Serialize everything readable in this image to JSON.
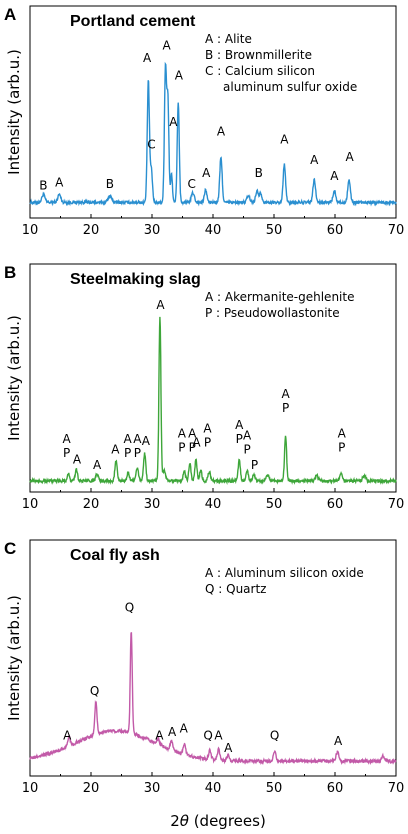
{
  "xlabel_prefix": "2",
  "xlabel_theta": "θ",
  "xlabel_suffix": " (degrees)",
  "chart_data": [
    {
      "type": "line",
      "letter": "A",
      "title": "Portland cement",
      "ylabel": "Intensity (arb.u.)",
      "color": "#2a8fd0",
      "xlim": [
        10,
        70
      ],
      "xticks": [
        10,
        20,
        30,
        40,
        50,
        60,
        70
      ],
      "legend": [
        "A : Alite",
        "B : Brownmillerite",
        "C : Calcium silicon",
        "aluminum sulfur oxide"
      ],
      "baseline": 0.06,
      "peaks": [
        {
          "x": 12.2,
          "h": 0.05,
          "w": 0.25
        },
        {
          "x": 14.8,
          "h": 0.05,
          "w": 0.25
        },
        {
          "x": 23.1,
          "h": 0.04,
          "w": 0.3
        },
        {
          "x": 29.4,
          "h": 0.76,
          "w": 0.18
        },
        {
          "x": 29.9,
          "h": 0.2,
          "w": 0.18
        },
        {
          "x": 32.2,
          "h": 0.83,
          "w": 0.17
        },
        {
          "x": 32.6,
          "h": 0.64,
          "w": 0.17
        },
        {
          "x": 33.2,
          "h": 0.18,
          "w": 0.15
        },
        {
          "x": 34.3,
          "h": 0.62,
          "w": 0.17
        },
        {
          "x": 36.7,
          "h": 0.06,
          "w": 0.25
        },
        {
          "x": 38.8,
          "h": 0.08,
          "w": 0.2
        },
        {
          "x": 41.3,
          "h": 0.28,
          "w": 0.2
        },
        {
          "x": 45.8,
          "h": 0.04,
          "w": 0.25
        },
        {
          "x": 47.2,
          "h": 0.07,
          "w": 0.22
        },
        {
          "x": 47.8,
          "h": 0.06,
          "w": 0.22
        },
        {
          "x": 51.7,
          "h": 0.24,
          "w": 0.2
        },
        {
          "x": 56.6,
          "h": 0.14,
          "w": 0.22
        },
        {
          "x": 59.9,
          "h": 0.07,
          "w": 0.22
        },
        {
          "x": 62.3,
          "h": 0.14,
          "w": 0.22
        }
      ],
      "labels": [
        {
          "x": 12.2,
          "y": 0.14,
          "text": [
            "B"
          ]
        },
        {
          "x": 14.8,
          "y": 0.16,
          "text": [
            "A"
          ]
        },
        {
          "x": 23.1,
          "y": 0.15,
          "text": [
            "B"
          ]
        },
        {
          "x": 29.2,
          "y": 0.94,
          "text": [
            "A"
          ]
        },
        {
          "x": 29.9,
          "y": 0.4,
          "text": [
            "C"
          ]
        },
        {
          "x": 32.4,
          "y": 1.02,
          "text": [
            "A"
          ]
        },
        {
          "x": 33.5,
          "y": 0.54,
          "text": [
            "A"
          ]
        },
        {
          "x": 34.4,
          "y": 0.83,
          "text": [
            "A"
          ]
        },
        {
          "x": 36.5,
          "y": 0.15,
          "text": [
            "C"
          ]
        },
        {
          "x": 38.9,
          "y": 0.22,
          "text": [
            "A"
          ]
        },
        {
          "x": 41.3,
          "y": 0.48,
          "text": [
            "A"
          ]
        },
        {
          "x": 47.5,
          "y": 0.22,
          "text": [
            "B"
          ]
        },
        {
          "x": 51.7,
          "y": 0.43,
          "text": [
            "A"
          ]
        },
        {
          "x": 56.6,
          "y": 0.3,
          "text": [
            "A"
          ]
        },
        {
          "x": 59.9,
          "y": 0.2,
          "text": [
            "A"
          ]
        },
        {
          "x": 62.4,
          "y": 0.32,
          "text": [
            "A"
          ]
        }
      ]
    },
    {
      "type": "line",
      "letter": "B",
      "title": "Steelmaking slag",
      "ylabel": "Intensity (arb.u.)",
      "color": "#3ea63a",
      "xlim": [
        10,
        70
      ],
      "xticks": [
        10,
        20,
        30,
        40,
        50,
        60,
        70
      ],
      "legend": [
        "A :  Akermanite-gehlenite",
        "P :  Pseudowollastonite"
      ],
      "baseline": 0.03,
      "peaks": [
        {
          "x": 16.3,
          "h": 0.04,
          "w": 0.18
        },
        {
          "x": 17.6,
          "h": 0.07,
          "w": 0.18
        },
        {
          "x": 21.0,
          "h": 0.04,
          "w": 0.2
        },
        {
          "x": 24.1,
          "h": 0.12,
          "w": 0.18
        },
        {
          "x": 26.1,
          "h": 0.05,
          "w": 0.18
        },
        {
          "x": 27.6,
          "h": 0.08,
          "w": 0.18
        },
        {
          "x": 28.8,
          "h": 0.16,
          "w": 0.18
        },
        {
          "x": 31.3,
          "h": 0.96,
          "w": 0.16
        },
        {
          "x": 32.0,
          "h": 0.06,
          "w": 0.2
        },
        {
          "x": 35.3,
          "h": 0.06,
          "w": 0.18
        },
        {
          "x": 36.2,
          "h": 0.1,
          "w": 0.18
        },
        {
          "x": 37.2,
          "h": 0.12,
          "w": 0.18
        },
        {
          "x": 38.0,
          "h": 0.06,
          "w": 0.18
        },
        {
          "x": 39.4,
          "h": 0.05,
          "w": 0.2
        },
        {
          "x": 44.3,
          "h": 0.12,
          "w": 0.18
        },
        {
          "x": 45.6,
          "h": 0.06,
          "w": 0.18
        },
        {
          "x": 46.7,
          "h": 0.04,
          "w": 0.2
        },
        {
          "x": 49.0,
          "h": 0.03,
          "w": 0.25
        },
        {
          "x": 51.9,
          "h": 0.26,
          "w": 0.17
        },
        {
          "x": 57.0,
          "h": 0.03,
          "w": 0.25
        },
        {
          "x": 61.0,
          "h": 0.05,
          "w": 0.2
        },
        {
          "x": 64.8,
          "h": 0.03,
          "w": 0.25
        }
      ],
      "labels": [
        {
          "x": 16.0,
          "y": 0.17,
          "text": [
            "A",
            "P"
          ]
        },
        {
          "x": 17.7,
          "y": 0.13,
          "text": [
            "A"
          ]
        },
        {
          "x": 21.0,
          "y": 0.1,
          "text": [
            "A"
          ]
        },
        {
          "x": 24.0,
          "y": 0.19,
          "text": [
            "A"
          ]
        },
        {
          "x": 26.0,
          "y": 0.17,
          "text": [
            "A",
            "P"
          ]
        },
        {
          "x": 27.6,
          "y": 0.17,
          "text": [
            "A",
            "P"
          ]
        },
        {
          "x": 29.0,
          "y": 0.24,
          "text": [
            "A"
          ]
        },
        {
          "x": 31.4,
          "y": 1.03,
          "text": [
            "A"
          ]
        },
        {
          "x": 34.9,
          "y": 0.2,
          "text": [
            "A",
            "P"
          ]
        },
        {
          "x": 36.6,
          "y": 0.2,
          "text": [
            "A",
            "P"
          ]
        },
        {
          "x": 37.3,
          "y": 0.23,
          "text": [
            "A"
          ]
        },
        {
          "x": 39.1,
          "y": 0.23,
          "text": [
            "A",
            "P"
          ]
        },
        {
          "x": 44.3,
          "y": 0.25,
          "text": [
            "A",
            "P"
          ]
        },
        {
          "x": 45.6,
          "y": 0.19,
          "text": [
            "A",
            "P"
          ]
        },
        {
          "x": 46.8,
          "y": 0.1,
          "text": [
            "P"
          ]
        },
        {
          "x": 51.9,
          "y": 0.43,
          "text": [
            "A",
            "P"
          ]
        },
        {
          "x": 61.1,
          "y": 0.2,
          "text": [
            "A",
            "P"
          ]
        }
      ]
    },
    {
      "type": "line",
      "letter": "C",
      "title": "Coal fly ash",
      "ylabel": "Intensity (arb.u.)",
      "color": "#c25aa8",
      "xlim": [
        10,
        70
      ],
      "xticks": [
        10,
        20,
        30,
        40,
        50,
        60,
        70
      ],
      "legend": [
        "A : Aluminum silicon oxide",
        "Q : Quartz"
      ],
      "baseline": 0.05,
      "hump": {
        "x": 24.0,
        "h": 0.17,
        "w": 6.5
      },
      "peaks": [
        {
          "x": 16.4,
          "h": 0.05,
          "w": 0.2
        },
        {
          "x": 20.8,
          "h": 0.18,
          "w": 0.18
        },
        {
          "x": 26.6,
          "h": 0.58,
          "w": 0.16
        },
        {
          "x": 31.0,
          "h": 0.03,
          "w": 0.2
        },
        {
          "x": 33.2,
          "h": 0.05,
          "w": 0.2
        },
        {
          "x": 35.3,
          "h": 0.06,
          "w": 0.2
        },
        {
          "x": 39.5,
          "h": 0.05,
          "w": 0.2
        },
        {
          "x": 40.9,
          "h": 0.06,
          "w": 0.2
        },
        {
          "x": 42.5,
          "h": 0.03,
          "w": 0.2
        },
        {
          "x": 50.1,
          "h": 0.06,
          "w": 0.2
        },
        {
          "x": 60.4,
          "h": 0.05,
          "w": 0.22
        },
        {
          "x": 67.9,
          "h": 0.03,
          "w": 0.25
        }
      ],
      "labels": [
        {
          "x": 16.1,
          "y": 0.17,
          "text": [
            "A"
          ]
        },
        {
          "x": 20.6,
          "y": 0.42,
          "text": [
            "Q"
          ]
        },
        {
          "x": 26.3,
          "y": 0.89,
          "text": [
            "Q"
          ]
        },
        {
          "x": 31.2,
          "y": 0.17,
          "text": [
            "A"
          ]
        },
        {
          "x": 33.3,
          "y": 0.19,
          "text": [
            "A"
          ]
        },
        {
          "x": 35.2,
          "y": 0.21,
          "text": [
            "A"
          ]
        },
        {
          "x": 39.2,
          "y": 0.17,
          "text": [
            "Q"
          ]
        },
        {
          "x": 40.9,
          "y": 0.17,
          "text": [
            "A"
          ]
        },
        {
          "x": 42.5,
          "y": 0.1,
          "text": [
            "A"
          ]
        },
        {
          "x": 50.1,
          "y": 0.17,
          "text": [
            "Q"
          ]
        },
        {
          "x": 60.5,
          "y": 0.14,
          "text": [
            "A"
          ]
        }
      ]
    }
  ]
}
